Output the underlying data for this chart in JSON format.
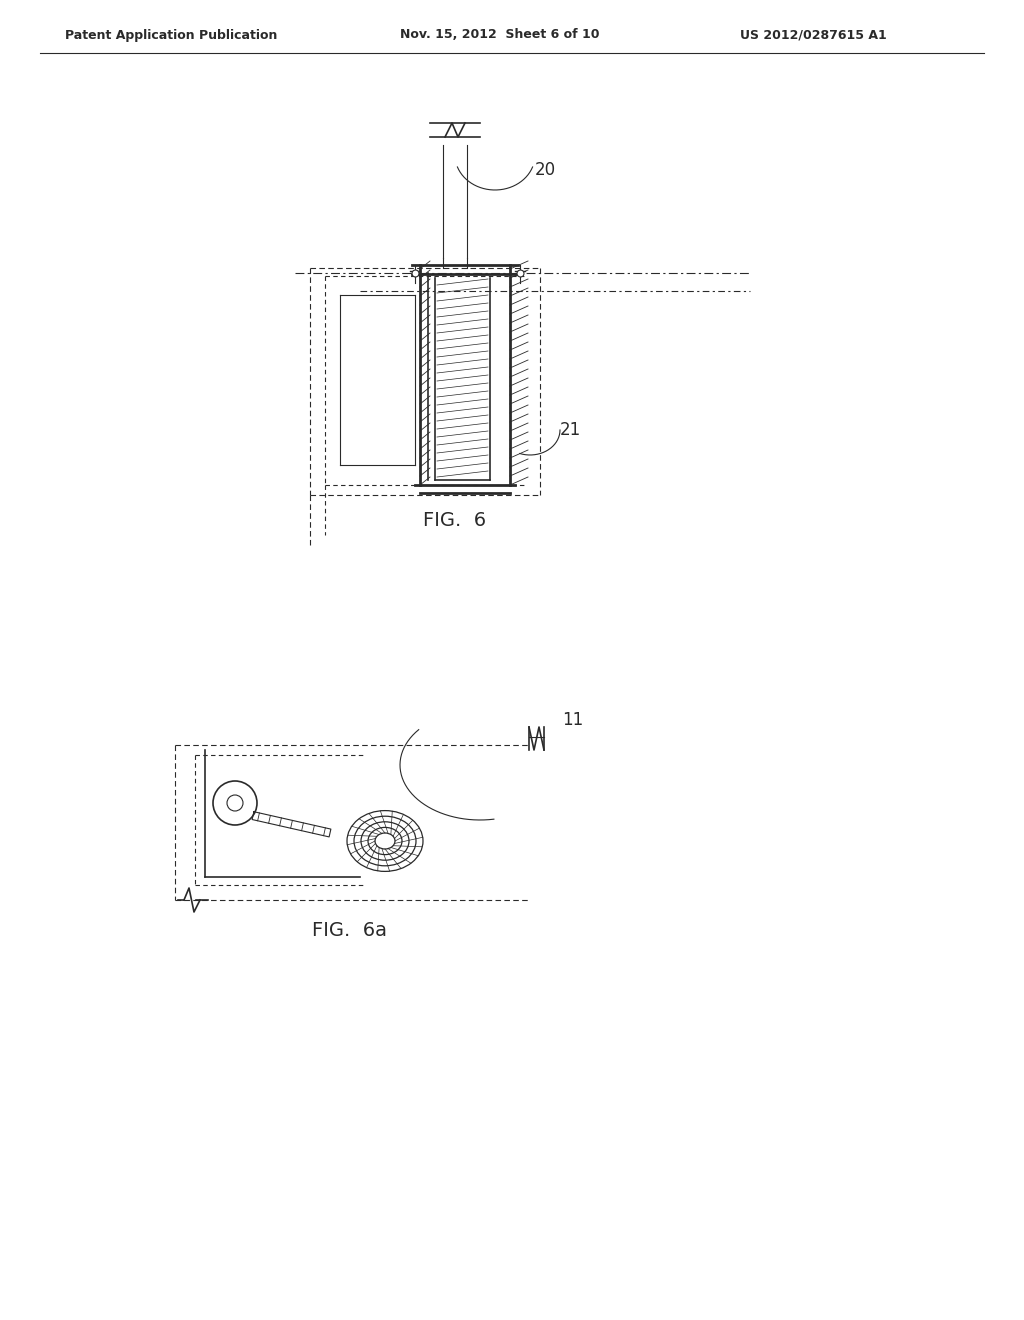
{
  "bg_color": "#ffffff",
  "line_color": "#2a2a2a",
  "header_left": "Patent Application Publication",
  "header_mid": "Nov. 15, 2012  Sheet 6 of 10",
  "header_right": "US 2012/0287615 A1",
  "fig6_label": "FIG.  6",
  "fig6a_label": "FIG.  6a",
  "ref20": "20",
  "ref21": "21",
  "ref11": "11"
}
